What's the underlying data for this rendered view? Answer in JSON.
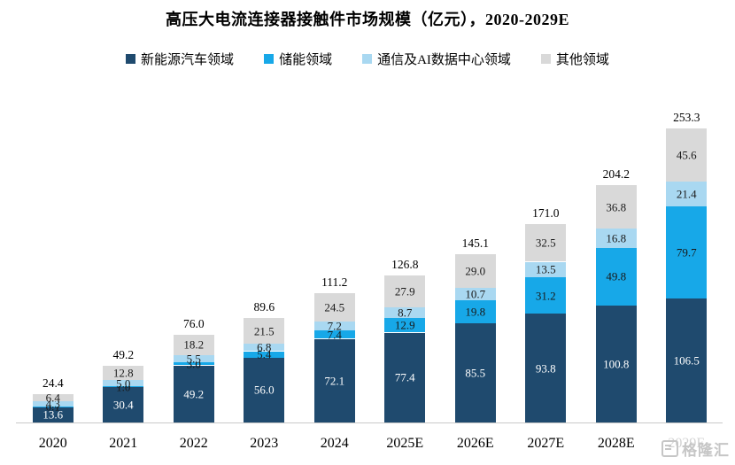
{
  "title": "高压大电流连接器接触件市场规模（亿元），2020-2029E",
  "watermark": {
    "text": "格隆汇"
  },
  "colors": {
    "background": "#ffffff",
    "axis_line": "#c9c9c9",
    "total_label": "#000000"
  },
  "chart_data": {
    "type": "bar",
    "stacked": true,
    "title": "高压大电流连接器接触件市场规模（亿元），2020-2029E",
    "unit": "亿元",
    "legend_position": "top",
    "grid": false,
    "ylim": [
      0,
      260
    ],
    "categories": [
      "2020",
      "2021",
      "2022",
      "2023",
      "2024",
      "2025E",
      "2026E",
      "2027E",
      "2028E",
      "2029E"
    ],
    "series": [
      {
        "name": "新能源汽车领域",
        "color": "#1f4a6e",
        "label_color": "#ffffff",
        "values": [
          13.6,
          30.4,
          49.2,
          56.0,
          72.1,
          77.4,
          85.5,
          93.8,
          100.8,
          106.5
        ]
      },
      {
        "name": "储能领域",
        "color": "#17a8e8",
        "label_color": "#1a1a1a",
        "values": [
          0.1,
          1.0,
          3.0,
          5.4,
          7.4,
          12.9,
          19.8,
          31.2,
          49.8,
          79.7
        ]
      },
      {
        "name": "通信及AI数据中心领域",
        "color": "#a9d8f1",
        "label_color": "#1a1a1a",
        "values": [
          4.3,
          5.0,
          5.5,
          6.8,
          7.2,
          8.7,
          10.7,
          13.5,
          16.8,
          21.4
        ]
      },
      {
        "name": "其他领域",
        "color": "#d9d9d9",
        "label_color": "#1a1a1a",
        "values": [
          6.4,
          12.8,
          18.2,
          21.5,
          24.5,
          27.9,
          29.0,
          32.5,
          36.8,
          45.6
        ]
      }
    ],
    "totals": [
      24.4,
      49.2,
      76.0,
      89.6,
      111.2,
      126.8,
      145.1,
      171.0,
      204.2,
      253.3
    ]
  }
}
